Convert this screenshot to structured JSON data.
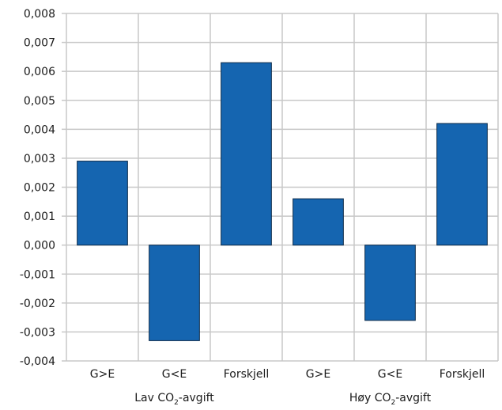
{
  "chart_data": {
    "type": "bar",
    "categories": [
      "G>E",
      "G<E",
      "Forskjell",
      "G>E",
      "G<E",
      "Forskjell"
    ],
    "groups": [
      {
        "label_main": "Lav CO",
        "label_sub": "2",
        "label_suffix": "-avgift",
        "categories": [
          0,
          1,
          2
        ]
      },
      {
        "label_main": "Høy CO",
        "label_sub": "2",
        "label_suffix": "-avgift",
        "categories": [
          3,
          4,
          5
        ]
      }
    ],
    "values": [
      0.0029,
      -0.0033,
      0.0063,
      0.0016,
      -0.0026,
      0.0042
    ],
    "ylim": [
      -0.004,
      0.008
    ],
    "yticks": [
      0.008,
      0.007,
      0.006,
      0.005,
      0.004,
      0.003,
      0.002,
      0.001,
      0.0,
      -0.001,
      -0.002,
      -0.003,
      -0.004
    ],
    "ytick_labels": [
      "0,008",
      "0,007",
      "0,006",
      "0,005",
      "0,004",
      "0,003",
      "0,002",
      "0,001",
      "0,000",
      "-0,001",
      "-0,002",
      "-0,003",
      "-0,004"
    ],
    "grid": true,
    "bar_color": "#1565b0",
    "grid_color": "#c8c8c8"
  }
}
